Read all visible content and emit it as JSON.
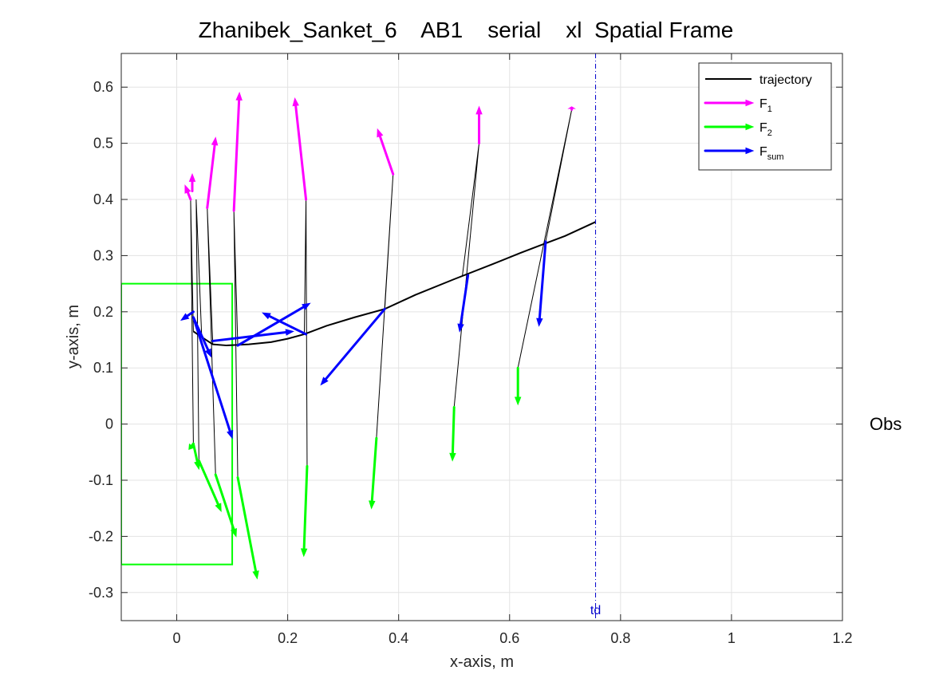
{
  "chart_data": {
    "type": "line",
    "title": "Zhanibek_Sanket_6    AB1    serial    xl  Spatial Frame",
    "xlabel": "x-axis, m",
    "ylabel": "y-axis, m",
    "xlim": [
      -0.1,
      1.2
    ],
    "ylim": [
      -0.35,
      0.66
    ],
    "xticks": [
      0,
      0.2,
      0.4,
      0.6,
      0.8,
      1,
      1.2
    ],
    "xtick_labels": [
      "0",
      "0.2",
      "0.4",
      "0.6",
      "0.8",
      "1",
      "1.2"
    ],
    "yticks": [
      -0.3,
      -0.2,
      -0.1,
      0,
      0.1,
      0.2,
      0.3,
      0.4,
      0.5,
      0.6
    ],
    "ytick_labels": [
      "-0.3",
      "-0.2",
      "-0.1",
      "0",
      "0.1",
      "0.2",
      "0.3",
      "0.4",
      "0.5",
      "0.6"
    ],
    "grid": true,
    "legend_position": "top-right",
    "legend": [
      {
        "key": "trajectory",
        "text": "trajectory",
        "sub": "",
        "color": "#000000",
        "marker": "line"
      },
      {
        "key": "f1",
        "text": "F",
        "sub": "1",
        "color": "#ff00ff",
        "marker": "arrow"
      },
      {
        "key": "f2",
        "text": "F",
        "sub": "2",
        "color": "#00ff00",
        "marker": "arrow"
      },
      {
        "key": "fsum",
        "text": "F",
        "sub": "sum",
        "color": "#0000ff",
        "marker": "arrow"
      }
    ],
    "trajectory": {
      "x": [
        0.03,
        0.045,
        0.065,
        0.09,
        0.13,
        0.17,
        0.2,
        0.23,
        0.27,
        0.32,
        0.375,
        0.43,
        0.5,
        0.57,
        0.62,
        0.66,
        0.7,
        0.755
      ],
      "y": [
        0.165,
        0.155,
        0.142,
        0.14,
        0.142,
        0.146,
        0.152,
        0.16,
        0.175,
        0.19,
        0.205,
        0.23,
        0.258,
        0.285,
        0.305,
        0.32,
        0.335,
        0.36
      ]
    },
    "segments": [
      {
        "x": [
          0.03,
          0.025,
          0.03
        ],
        "y": [
          0.165,
          0.4,
          -0.035
        ]
      },
      {
        "x": [
          0.045,
          0.035,
          0.04
        ],
        "y": [
          0.155,
          0.4,
          -0.065
        ]
      },
      {
        "x": [
          0.065,
          0.055,
          0.07
        ],
        "y": [
          0.142,
          0.385,
          -0.09
        ]
      },
      {
        "x": [
          0.11,
          0.103,
          0.11
        ],
        "y": [
          0.14,
          0.38,
          -0.095
        ]
      },
      {
        "x": [
          0.23,
          0.233,
          0.235
        ],
        "y": [
          0.16,
          0.4,
          -0.075
        ]
      },
      {
        "x": [
          0.375,
          0.39,
          0.36
        ],
        "y": [
          0.205,
          0.445,
          -0.025
        ]
      },
      {
        "x": [
          0.515,
          0.545,
          0.5
        ],
        "y": [
          0.265,
          0.5,
          0.03
        ]
      },
      {
        "x": [
          0.665,
          0.712,
          0.615
        ],
        "y": [
          0.325,
          0.56,
          0.1
        ]
      }
    ],
    "f1_arrows": [
      {
        "x0": 0.025,
        "y0": 0.4,
        "x1": 0.015,
        "y1": 0.425
      },
      {
        "x0": 0.028,
        "y0": 0.415,
        "x1": 0.028,
        "y1": 0.445
      },
      {
        "x0": 0.055,
        "y0": 0.385,
        "x1": 0.07,
        "y1": 0.51
      },
      {
        "x0": 0.103,
        "y0": 0.38,
        "x1": 0.113,
        "y1": 0.59
      },
      {
        "x0": 0.233,
        "y0": 0.4,
        "x1": 0.213,
        "y1": 0.58
      },
      {
        "x0": 0.39,
        "y0": 0.445,
        "x1": 0.362,
        "y1": 0.525
      },
      {
        "x0": 0.545,
        "y0": 0.5,
        "x1": 0.545,
        "y1": 0.565
      },
      {
        "x0": 0.712,
        "y0": 0.56,
        "x1": 0.712,
        "y1": 0.565
      }
    ],
    "f2_arrows": [
      {
        "x0": 0.03,
        "y0": -0.035,
        "x1": 0.022,
        "y1": -0.045
      },
      {
        "x0": 0.03,
        "y0": -0.035,
        "x1": 0.04,
        "y1": -0.08
      },
      {
        "x0": 0.04,
        "y0": -0.065,
        "x1": 0.08,
        "y1": -0.155
      },
      {
        "x0": 0.07,
        "y0": -0.09,
        "x1": 0.107,
        "y1": -0.2
      },
      {
        "x0": 0.11,
        "y0": -0.095,
        "x1": 0.145,
        "y1": -0.275
      },
      {
        "x0": 0.235,
        "y0": -0.075,
        "x1": 0.229,
        "y1": -0.235
      },
      {
        "x0": 0.36,
        "y0": -0.025,
        "x1": 0.351,
        "y1": -0.15
      },
      {
        "x0": 0.5,
        "y0": 0.03,
        "x1": 0.497,
        "y1": -0.065
      },
      {
        "x0": 0.615,
        "y0": 0.1,
        "x1": 0.615,
        "y1": 0.035
      }
    ],
    "fsum_arrows": [
      {
        "x0": 0.03,
        "y0": 0.2,
        "x1": 0.008,
        "y1": 0.185
      },
      {
        "x0": 0.03,
        "y0": 0.19,
        "x1": 0.062,
        "y1": 0.12
      },
      {
        "x0": 0.03,
        "y0": 0.19,
        "x1": 0.1,
        "y1": -0.025
      },
      {
        "x0": 0.065,
        "y0": 0.148,
        "x1": 0.21,
        "y1": 0.165
      },
      {
        "x0": 0.11,
        "y0": 0.14,
        "x1": 0.24,
        "y1": 0.215
      },
      {
        "x0": 0.233,
        "y0": 0.16,
        "x1": 0.155,
        "y1": 0.198
      },
      {
        "x0": 0.375,
        "y0": 0.205,
        "x1": 0.26,
        "y1": 0.07
      },
      {
        "x0": 0.525,
        "y0": 0.265,
        "x1": 0.51,
        "y1": 0.165
      },
      {
        "x0": 0.665,
        "y0": 0.325,
        "x1": 0.653,
        "y1": 0.175
      }
    ],
    "box": {
      "x": [
        -0.1,
        0.1
      ],
      "y": [
        -0.25,
        0.25
      ],
      "color": "#00ff00"
    },
    "td_line": {
      "x": 0.755,
      "label": "td",
      "color": "#0000cc"
    },
    "side_label": "Obs"
  }
}
